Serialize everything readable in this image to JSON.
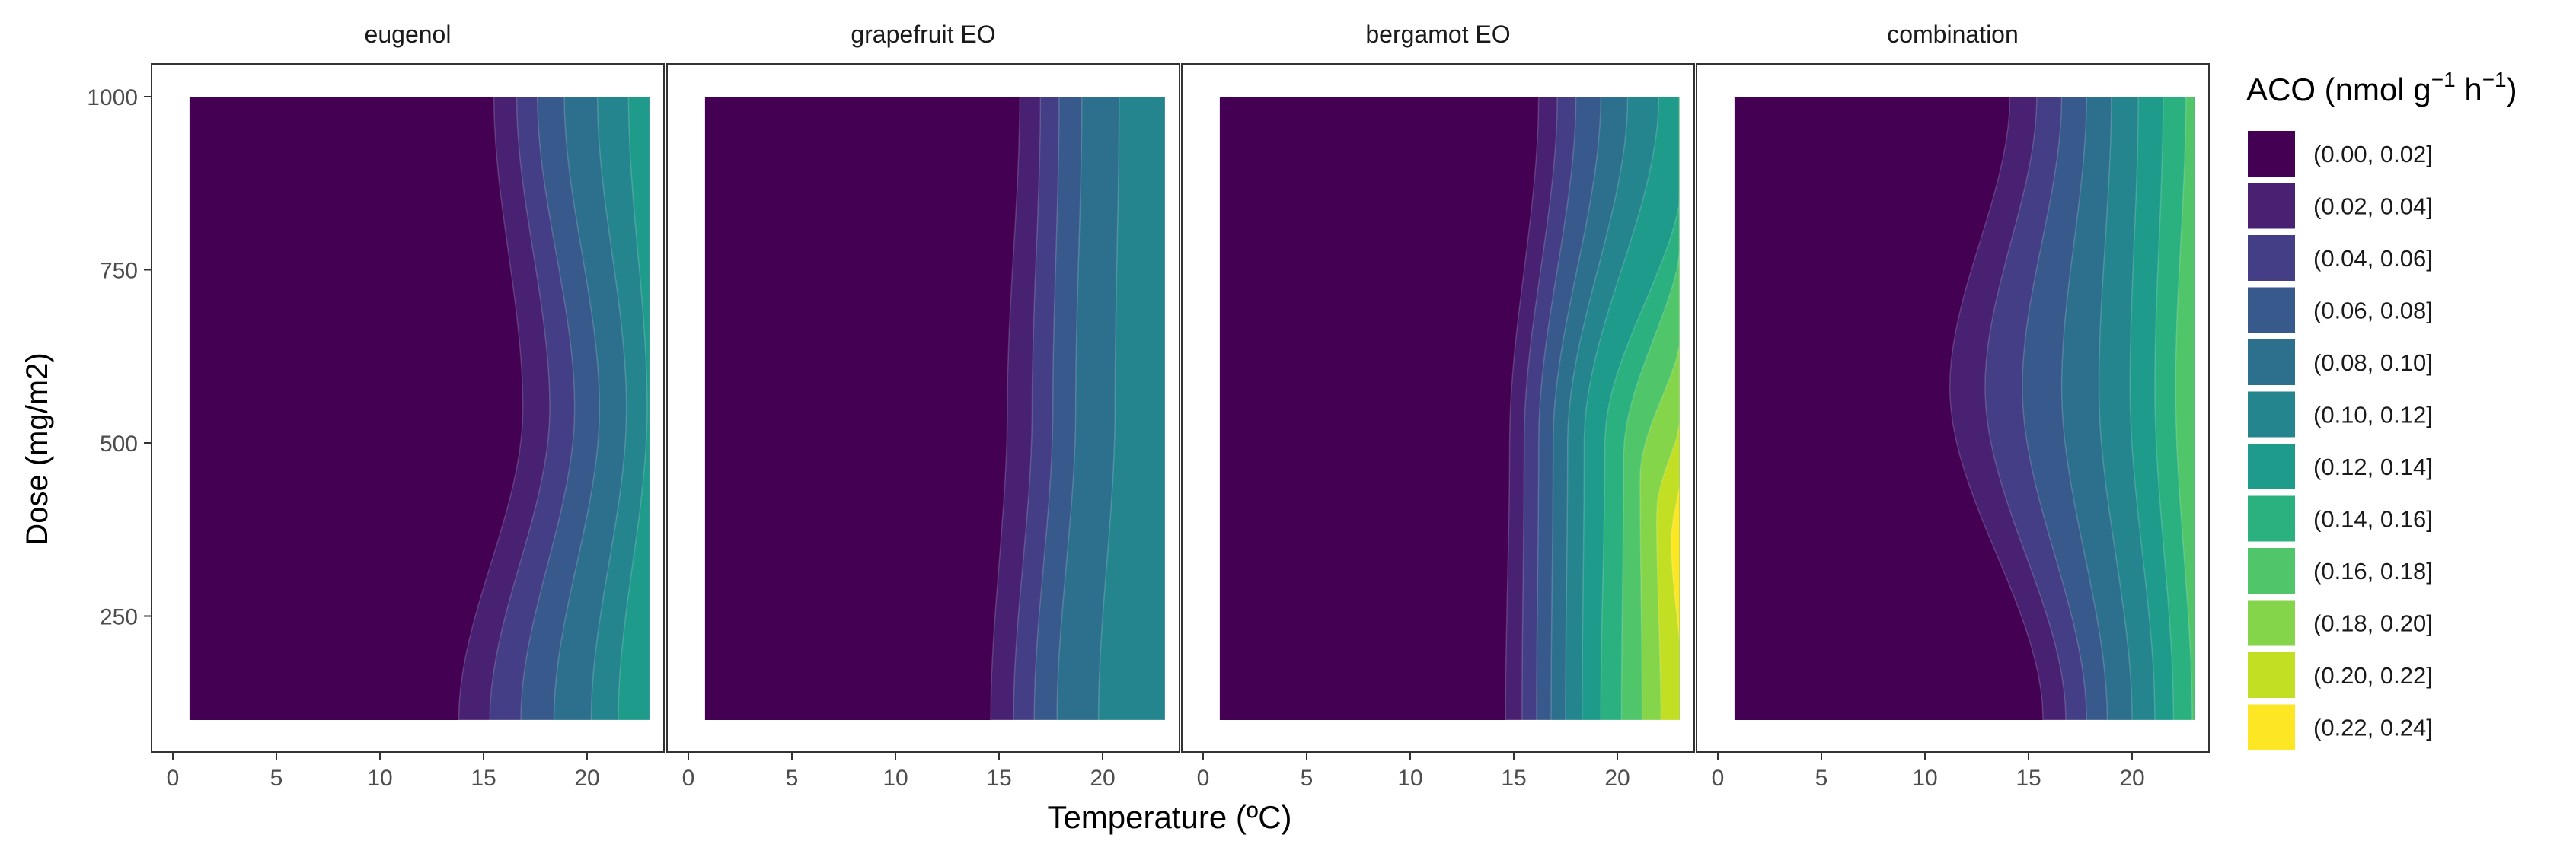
{
  "chart_data": {
    "type": "heatmap",
    "subtype": "filled-contour",
    "title": "",
    "xlabel": "Temperature (ºC)",
    "ylabel": "Dose (mg/m2)",
    "xlim": [
      0,
      23
    ],
    "ylim": [
      100,
      1000
    ],
    "x_ticks": [
      0,
      5,
      10,
      15,
      20
    ],
    "y_ticks": [
      250,
      500,
      750,
      1000
    ],
    "grid": false,
    "legend": {
      "title": "ACO (nmol g",
      "position": "right",
      "bins": [
        {
          "label": "(0.00, 0.02]",
          "color": "#440154"
        },
        {
          "label": "(0.02, 0.04]",
          "color": "#482173"
        },
        {
          "label": "(0.04, 0.06]",
          "color": "#433E85"
        },
        {
          "label": "(0.06, 0.08]",
          "color": "#38598C"
        },
        {
          "label": "(0.08, 0.10]",
          "color": "#2D708E"
        },
        {
          "label": "(0.10, 0.12]",
          "color": "#25858E"
        },
        {
          "label": "(0.12, 0.14]",
          "color": "#1E9B8A"
        },
        {
          "label": "(0.14, 0.16]",
          "color": "#2BB07F"
        },
        {
          "label": "(0.16, 0.18]",
          "color": "#51C56A"
        },
        {
          "label": "(0.18, 0.20]",
          "color": "#85D54A"
        },
        {
          "label": "(0.20, 0.22]",
          "color": "#C2DF23"
        },
        {
          "label": "(0.22, 0.24]",
          "color": "#FDE725"
        }
      ]
    },
    "panels": [
      {
        "name": "eugenol",
        "boundaries": [
          {
            "dose": [
              100,
              550,
              1000
            ],
            "temp": [
              13.8,
              16.9,
              15.5
            ]
          },
          {
            "dose": [
              100,
              550,
              1000
            ],
            "temp": [
              15.3,
              18.2,
              16.6
            ]
          },
          {
            "dose": [
              100,
              550,
              1000
            ],
            "temp": [
              16.8,
              19.4,
              17.6
            ]
          },
          {
            "dose": [
              100,
              550,
              1000
            ],
            "temp": [
              18.4,
              20.6,
              18.9
            ]
          },
          {
            "dose": [
              100,
              550,
              1000
            ],
            "temp": [
              20.2,
              21.9,
              20.5
            ]
          },
          {
            "dose": [
              100,
              550,
              1000
            ],
            "temp": [
              21.5,
              22.9,
              22.0
            ]
          }
        ]
      },
      {
        "name": "grapefruit EO",
        "boundaries": [
          {
            "dose": [
              100,
              550,
              1000
            ],
            "temp": [
              14.6,
              15.4,
              16.0
            ]
          },
          {
            "dose": [
              100,
              550,
              1000
            ],
            "temp": [
              15.7,
              16.6,
              17.0
            ]
          },
          {
            "dose": [
              100,
              550,
              1000
            ],
            "temp": [
              16.7,
              17.6,
              17.9
            ]
          },
          {
            "dose": [
              100,
              550,
              1000
            ],
            "temp": [
              17.8,
              18.7,
              19.0
            ]
          },
          {
            "dose": [
              100,
              550,
              1000
            ],
            "temp": [
              19.8,
              20.6,
              20.8
            ]
          }
        ]
      },
      {
        "name": "bergamot EO",
        "boundaries": [
          {
            "dose": [
              100,
              500,
              1000
            ],
            "temp": [
              14.6,
              14.8,
              16.2
            ]
          },
          {
            "dose": [
              100,
              500,
              1000
            ],
            "temp": [
              15.4,
              15.5,
              17.1
            ]
          },
          {
            "dose": [
              100,
              500,
              1000
            ],
            "temp": [
              16.1,
              16.2,
              18.0
            ]
          },
          {
            "dose": [
              100,
              500,
              1000
            ],
            "temp": [
              16.8,
              16.9,
              19.2
            ]
          },
          {
            "dose": [
              100,
              500,
              1000
            ],
            "temp": [
              17.5,
              17.6,
              20.5
            ]
          },
          {
            "dose": [
              100,
              500,
              1000
            ],
            "temp": [
              18.3,
              18.4,
              22.0
            ]
          },
          {
            "dose": [
              100,
              500,
              900
            ],
            "temp": [
              19.2,
              19.4,
              23.2
            ]
          },
          {
            "dose": [
              100,
              480,
              820
            ],
            "temp": [
              20.2,
              20.3,
              23.2
            ]
          },
          {
            "dose": [
              100,
              450,
              680
            ],
            "temp": [
              21.2,
              21.1,
              23.2
            ]
          },
          {
            "dose": [
              100,
              400,
              560
            ],
            "temp": [
              22.1,
              21.9,
              23.2
            ]
          },
          {
            "dose": [
              130,
              360,
              480
            ],
            "temp": [
              23.2,
              22.6,
              23.2
            ]
          }
        ]
      },
      {
        "name": "combination",
        "boundaries": [
          {
            "dose": [
              100,
              580,
              1000
            ],
            "temp": [
              15.7,
              11.2,
              14.1
            ]
          },
          {
            "dose": [
              100,
              580,
              1000
            ],
            "temp": [
              16.8,
              12.9,
              15.4
            ]
          },
          {
            "dose": [
              100,
              580,
              1000
            ],
            "temp": [
              17.8,
              14.7,
              16.6
            ]
          },
          {
            "dose": [
              100,
              580,
              1000
            ],
            "temp": [
              18.8,
              16.6,
              17.8
            ]
          },
          {
            "dose": [
              100,
              580,
              1000
            ],
            "temp": [
              20.0,
              18.4,
              19.0
            ]
          },
          {
            "dose": [
              100,
              580,
              1000
            ],
            "temp": [
              21.1,
              19.9,
              20.3
            ]
          },
          {
            "dose": [
              100,
              580,
              1000
            ],
            "temp": [
              22.0,
              21.1,
              21.5
            ]
          },
          {
            "dose": [
              100,
              580,
              1000
            ],
            "temp": [
              22.9,
              22.1,
              22.6
            ]
          }
        ]
      }
    ]
  }
}
